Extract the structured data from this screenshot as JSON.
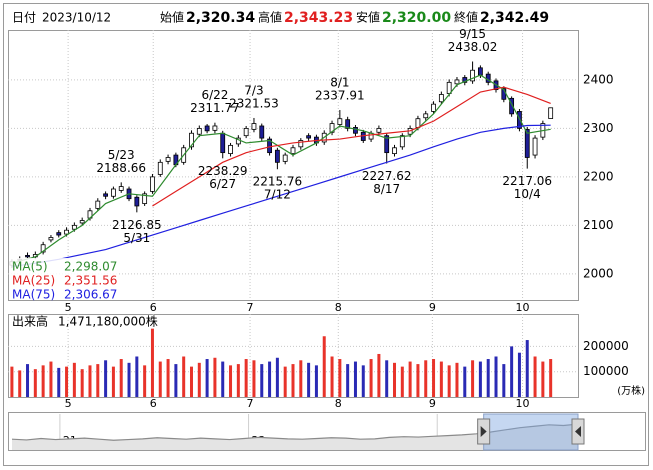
{
  "header": {
    "date_label": "日付",
    "date": "2023/10/12",
    "open_label": "始値",
    "open": "2,320.34",
    "high_label": "高値",
    "high": "2,343.23",
    "low_label": "安値",
    "low": "2,320.00",
    "close_label": "終値",
    "close": "2,342.49"
  },
  "chart_data": {
    "type": "candlestick",
    "x": [
      1,
      3,
      5,
      7,
      9,
      11,
      13,
      15,
      17,
      19,
      21,
      23,
      25,
      27,
      29,
      31,
      33,
      35,
      37,
      39,
      41,
      43,
      45,
      47,
      49,
      51,
      53,
      55,
      57,
      59,
      61,
      63,
      65,
      67,
      69,
      71,
      73,
      75,
      77,
      79,
      81,
      83,
      85,
      87,
      89,
      91,
      93,
      95,
      97,
      99,
      101,
      103,
      105,
      107,
      109,
      111,
      113,
      115,
      117,
      119,
      121,
      123,
      125,
      127,
      129,
      131,
      133,
      135,
      137,
      139
    ],
    "open": [
      2018,
      2028,
      2038,
      2035,
      2045,
      2070,
      2085,
      2082,
      2092,
      2105,
      2115,
      2135,
      2165,
      2160,
      2172,
      2175,
      2158,
      2145,
      2170,
      2205,
      2232,
      2245,
      2230,
      2262,
      2288,
      2305,
      2296,
      2290,
      2248,
      2268,
      2285,
      2298,
      2305,
      2278,
      2255,
      2232,
      2248,
      2262,
      2285,
      2282,
      2272,
      2292,
      2308,
      2318,
      2302,
      2292,
      2278,
      2292,
      2285,
      2248,
      2262,
      2288,
      2302,
      2322,
      2335,
      2355,
      2372,
      2392,
      2405,
      2398,
      2425,
      2412,
      2398,
      2382,
      2362,
      2335,
      2298,
      2245,
      2282,
      2320.34
    ],
    "high": [
      2030,
      2036,
      2044,
      2046,
      2066,
      2080,
      2090,
      2096,
      2106,
      2116,
      2136,
      2156,
      2170,
      2180,
      2188.66,
      2180,
      2162,
      2170,
      2206,
      2236,
      2246,
      2250,
      2266,
      2296,
      2306,
      2309,
      2311.77,
      2295,
      2270,
      2286,
      2305,
      2321.53,
      2310,
      2283,
      2260,
      2250,
      2266,
      2280,
      2290,
      2287,
      2296,
      2316,
      2337.91,
      2324,
      2307,
      2297,
      2295,
      2306,
      2290,
      2266,
      2290,
      2306,
      2326,
      2336,
      2356,
      2376,
      2401,
      2406,
      2410,
      2438.02,
      2430,
      2417,
      2403,
      2387,
      2366,
      2340,
      2303,
      2286,
      2316,
      2343.23
    ],
    "low": [
      2012,
      2023,
      2030,
      2030,
      2040,
      2065,
      2075,
      2077,
      2087,
      2100,
      2110,
      2130,
      2154,
      2155,
      2167,
      2150,
      2126.85,
      2140,
      2165,
      2200,
      2226,
      2220,
      2225,
      2256,
      2282,
      2290,
      2290,
      2238.29,
      2242,
      2262,
      2280,
      2292,
      2274,
      2244,
      2215.76,
      2226,
      2242,
      2256,
      2274,
      2264,
      2266,
      2286,
      2302,
      2294,
      2284,
      2270,
      2272,
      2286,
      2227.62,
      2242,
      2256,
      2282,
      2296,
      2316,
      2330,
      2350,
      2366,
      2386,
      2389,
      2392,
      2404,
      2389,
      2374,
      2354,
      2324,
      2294,
      2217.06,
      2238,
      2276,
      2320
    ],
    "close": [
      2025,
      2030,
      2035,
      2040,
      2060,
      2075,
      2080,
      2090,
      2100,
      2110,
      2130,
      2150,
      2160,
      2175,
      2180,
      2155,
      2140,
      2165,
      2200,
      2230,
      2240,
      2225,
      2260,
      2290,
      2300,
      2295,
      2305,
      2250,
      2265,
      2280,
      2300,
      2310,
      2280,
      2250,
      2230,
      2245,
      2260,
      2275,
      2280,
      2270,
      2290,
      2310,
      2320,
      2300,
      2290,
      2275,
      2290,
      2300,
      2250,
      2260,
      2285,
      2300,
      2320,
      2330,
      2350,
      2370,
      2395,
      2400,
      2395,
      2420,
      2410,
      2395,
      2380,
      2360,
      2330,
      2300,
      2240,
      2280,
      2310,
      2342.49
    ],
    "xlim": [
      0,
      146
    ],
    "xticks": [
      {
        "value": 15.4,
        "label": "5"
      },
      {
        "value": 37.2,
        "label": "6"
      },
      {
        "value": 62,
        "label": "7"
      },
      {
        "value": 84.6,
        "label": "8"
      },
      {
        "value": 108.7,
        "label": "9"
      },
      {
        "value": 131.8,
        "label": "10"
      }
    ],
    "ylim": [
      1946,
      2503
    ],
    "yticks": [
      2000,
      2100,
      2200,
      2300,
      2400
    ],
    "grid": true,
    "up_color": "#ffffff",
    "down_color": "#1e1e96",
    "line_color": "#000000",
    "ma_series": [
      {
        "name": "MA(5)",
        "legend_value": "2,298.07",
        "color": "#2e8b2e",
        "x": [
          1,
          7,
          13,
          19,
          25,
          31,
          37,
          43,
          49,
          55,
          61,
          67,
          73,
          79,
          85,
          91,
          97,
          103,
          109,
          115,
          121,
          127,
          133,
          139
        ],
        "values": [
          2022,
          2035,
          2070,
          2100,
          2145,
          2165,
          2160,
          2225,
          2285,
          2290,
          2270,
          2275,
          2245,
          2270,
          2305,
          2295,
          2280,
          2285,
          2330,
          2390,
          2410,
          2380,
          2290,
          2298.07
        ]
      },
      {
        "name": "MA(25)",
        "legend_value": "2,351.56",
        "color": "#e02020",
        "x": [
          37,
          43,
          49,
          55,
          61,
          67,
          73,
          79,
          85,
          91,
          97,
          103,
          109,
          115,
          121,
          127,
          133,
          139
        ],
        "values": [
          2140,
          2170,
          2200,
          2230,
          2250,
          2262,
          2270,
          2275,
          2278,
          2285,
          2290,
          2295,
          2315,
          2345,
          2375,
          2385,
          2370,
          2351.56
        ]
      },
      {
        "name": "MA(75)",
        "legend_value": "2,306.67",
        "color": "#2020e0",
        "x": [
          1,
          7,
          13,
          19,
          25,
          31,
          37,
          43,
          49,
          55,
          61,
          67,
          73,
          79,
          85,
          91,
          97,
          103,
          109,
          115,
          121,
          127,
          133,
          139
        ],
        "values": [
          2015,
          2022,
          2030,
          2040,
          2050,
          2065,
          2080,
          2095,
          2110,
          2125,
          2140,
          2155,
          2170,
          2185,
          2200,
          2215,
          2230,
          2245,
          2262,
          2278,
          2292,
          2300,
          2306,
          2306.67
        ]
      }
    ],
    "annotations": [
      {
        "date": "5/23",
        "x": 29,
        "value": 2188.66
      },
      {
        "date": "5/31",
        "x": 33,
        "value": 2126.85
      },
      {
        "date": "6/22",
        "x": 53,
        "value": 2311.77
      },
      {
        "date": "6/27",
        "x": 55,
        "value": 2238.29
      },
      {
        "date": "7/3",
        "x": 63,
        "value": 2321.53
      },
      {
        "date": "7/12",
        "x": 69,
        "value": 2215.76
      },
      {
        "date": "8/1",
        "x": 85,
        "value": 2337.91
      },
      {
        "date": "8/17",
        "x": 97,
        "value": 2227.62
      },
      {
        "date": "9/15",
        "x": 119,
        "value": 2438.02
      },
      {
        "date": "10/4",
        "x": 133,
        "value": 2217.06
      }
    ],
    "volume": {
      "title": "出来高",
      "total": "1,471,180,000株",
      "unit": "(万株)",
      "values": [
        120000,
        105000,
        130000,
        110000,
        125000,
        140000,
        115000,
        120000,
        135000,
        110000,
        125000,
        130000,
        145000,
        120000,
        150000,
        135000,
        160000,
        125000,
        270000,
        140000,
        150000,
        130000,
        160000,
        120000,
        135000,
        150000,
        155000,
        140000,
        125000,
        130000,
        150000,
        145000,
        130000,
        140000,
        155000,
        120000,
        130000,
        145000,
        135000,
        125000,
        240000,
        160000,
        150000,
        130000,
        140000,
        125000,
        150000,
        170000,
        145000,
        135000,
        120000,
        140000,
        130000,
        145000,
        150000,
        140000,
        125000,
        135000,
        120000,
        145000,
        140000,
        150000,
        160000,
        130000,
        200000,
        175000,
        225000,
        160000,
        140000,
        150000
      ],
      "ylim": [
        0,
        320000
      ],
      "yticks": [
        100000,
        200000
      ],
      "up_color": "#e8332a",
      "down_color": "#2a2ab4"
    },
    "navigator": {
      "values": [
        30,
        28,
        32,
        29,
        31,
        33,
        30,
        27,
        29,
        31,
        34,
        32,
        30,
        33,
        31,
        29,
        32,
        35,
        33,
        31,
        30,
        32,
        34,
        33,
        30,
        31,
        35,
        37,
        36,
        38,
        40,
        42,
        45,
        50,
        56,
        62,
        66,
        70,
        68,
        72
      ],
      "xlim": [
        0,
        39
      ],
      "ylim": [
        0,
        100
      ],
      "xticks": [
        {
          "value": 3.3,
          "label": "21"
        },
        {
          "value": 16.3,
          "label": "22"
        },
        {
          "value": 29.3,
          "label": "23"
        }
      ],
      "selection": [
        32.5,
        39
      ],
      "color": "#8a8a8a"
    }
  }
}
